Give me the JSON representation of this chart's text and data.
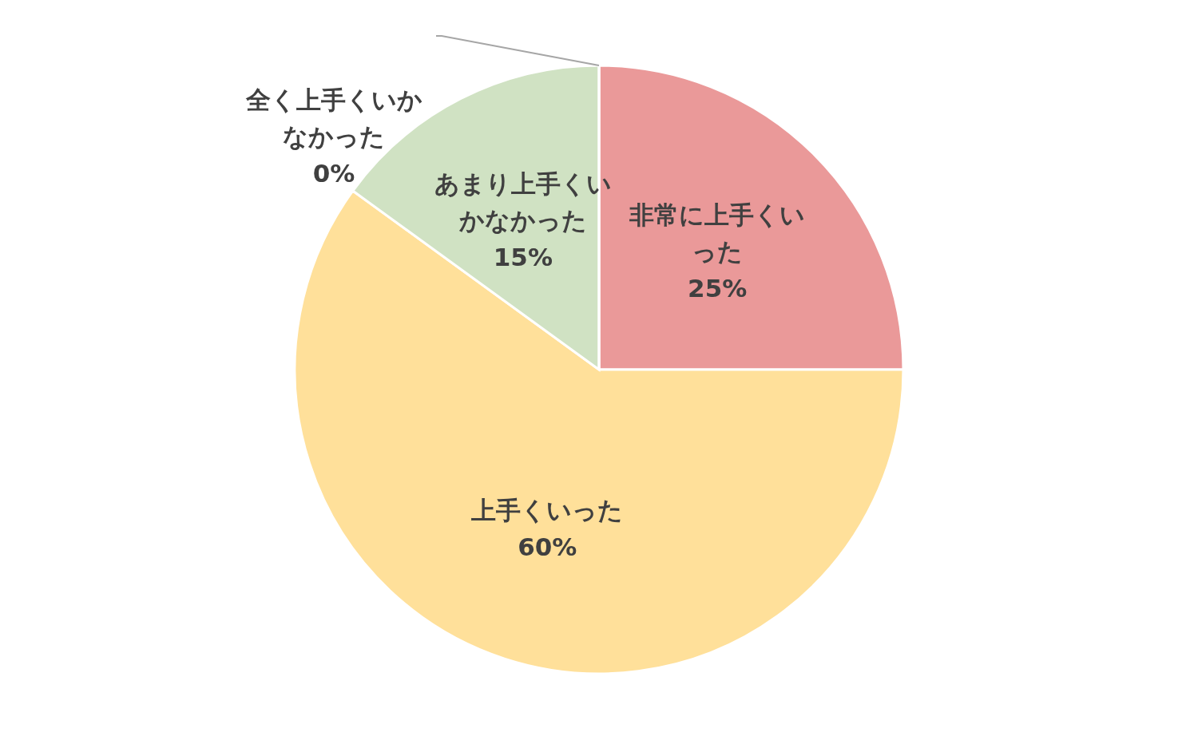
{
  "chart_data": {
    "type": "pie",
    "categories": [
      "非常に上手くいった",
      "上手くいった",
      "あまり上手くいかなかった",
      "全く上手くいかなかった"
    ],
    "values": [
      25,
      60,
      15,
      0
    ],
    "value_labels": [
      "25%",
      "60%",
      "15%",
      "0%"
    ],
    "colors": [
      "#ea9999",
      "#ffe09a",
      "#d0e2c3",
      "#c9daf8"
    ]
  }
}
